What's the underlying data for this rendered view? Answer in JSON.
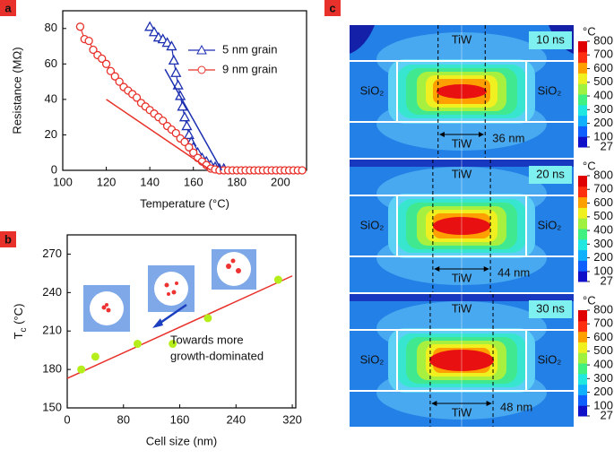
{
  "chart_data": [
    {
      "type": "line",
      "panel_label": "a",
      "xlabel": "Temperature (°C)",
      "ylabel": "Resistance (MΩ)",
      "xlim": [
        100,
        212
      ],
      "ylim": [
        0,
        90
      ],
      "xticks": [
        100,
        120,
        140,
        160,
        180,
        200
      ],
      "yticks": [
        0,
        20,
        40,
        60,
        80
      ],
      "legend": "upper right",
      "series": [
        {
          "name": "5 nm grain",
          "color": "#1c2fb0",
          "marker": "triangle",
          "x": [
            140,
            142,
            144,
            146,
            148,
            150,
            151,
            152,
            153,
            154,
            155,
            156,
            157,
            158,
            159,
            160,
            162,
            164,
            166,
            168,
            170,
            172,
            174
          ],
          "values": [
            81,
            78,
            75,
            74,
            72,
            70,
            62,
            55,
            48,
            42,
            36,
            30,
            25,
            20,
            16,
            13,
            10,
            7,
            5,
            3,
            2,
            1,
            1
          ]
        },
        {
          "name": "9 nm grain",
          "color": "#e8312a",
          "marker": "circle",
          "x": [
            108,
            110,
            112,
            114,
            116,
            118,
            120,
            122,
            124,
            126,
            128,
            130,
            132,
            134,
            136,
            138,
            140,
            142,
            144,
            146,
            148,
            150,
            152,
            154,
            156,
            158,
            160,
            162,
            164,
            166,
            168,
            170,
            172,
            174,
            176,
            178,
            180,
            182,
            184,
            186,
            188,
            190,
            192,
            194,
            196,
            198,
            200,
            202,
            204,
            206,
            208,
            210
          ],
          "values": [
            81,
            74,
            73,
            68,
            65,
            63,
            60,
            56,
            53,
            50,
            47,
            45,
            43,
            41,
            38,
            36,
            34,
            32,
            30,
            28,
            25,
            23,
            21,
            18,
            16,
            13,
            10,
            7,
            5,
            3,
            1,
            0.5,
            0,
            0,
            0,
            0,
            0,
            0,
            0,
            0,
            0,
            0,
            0,
            0,
            0,
            0,
            0,
            0,
            0,
            0,
            0,
            0
          ]
        }
      ],
      "fit_lines": [
        {
          "color": "#1c2fb0",
          "x": [
            147,
            173
          ],
          "values": [
            57,
            0
          ]
        },
        {
          "color": "#e8312a",
          "x": [
            120,
            168
          ],
          "values": [
            40,
            0
          ]
        }
      ]
    },
    {
      "type": "scatter",
      "panel_label": "b",
      "xlabel": "Cell size (nm)",
      "ylabel": [
        "T",
        "c",
        " (°C)"
      ],
      "xlim": [
        0,
        325
      ],
      "ylim": [
        150,
        285
      ],
      "xticks": [
        0,
        80,
        160,
        240,
        320
      ],
      "yticks": [
        150,
        180,
        210,
        240,
        270
      ],
      "x": [
        20,
        40,
        100,
        150,
        200,
        300
      ],
      "values": [
        180,
        190,
        200,
        200,
        220,
        250
      ],
      "color": "#b6ee1c",
      "fit_line": {
        "color": "#e8312a",
        "x": [
          0,
          320
        ],
        "values": [
          173,
          253
        ]
      },
      "annotation": [
        "Towards  more",
        "growth-dominated"
      ]
    },
    {
      "type": "thermal-map",
      "panel_label": "c",
      "material_top": "TiW",
      "material_side": "SiO₂",
      "colorbar": {
        "unit": "°C",
        "clim": [
          27,
          800
        ],
        "ticks": [
          27,
          100,
          200,
          300,
          400,
          500,
          600,
          700,
          800
        ],
        "colors": [
          "#1010c8",
          "#1060ff",
          "#10b0ff",
          "#20e8e0",
          "#40f080",
          "#a0f040",
          "#f0f020",
          "#ffa000",
          "#ff3010",
          "#e00000"
        ]
      },
      "panels": [
        {
          "time": "10 ns",
          "width": {
            "value": 36,
            "label": "36 nm"
          }
        },
        {
          "time": "20 ns",
          "width": {
            "value": 44,
            "label": "44 nm"
          }
        },
        {
          "time": "30 ns",
          "width": {
            "value": 48,
            "label": "48 nm"
          }
        }
      ]
    }
  ]
}
